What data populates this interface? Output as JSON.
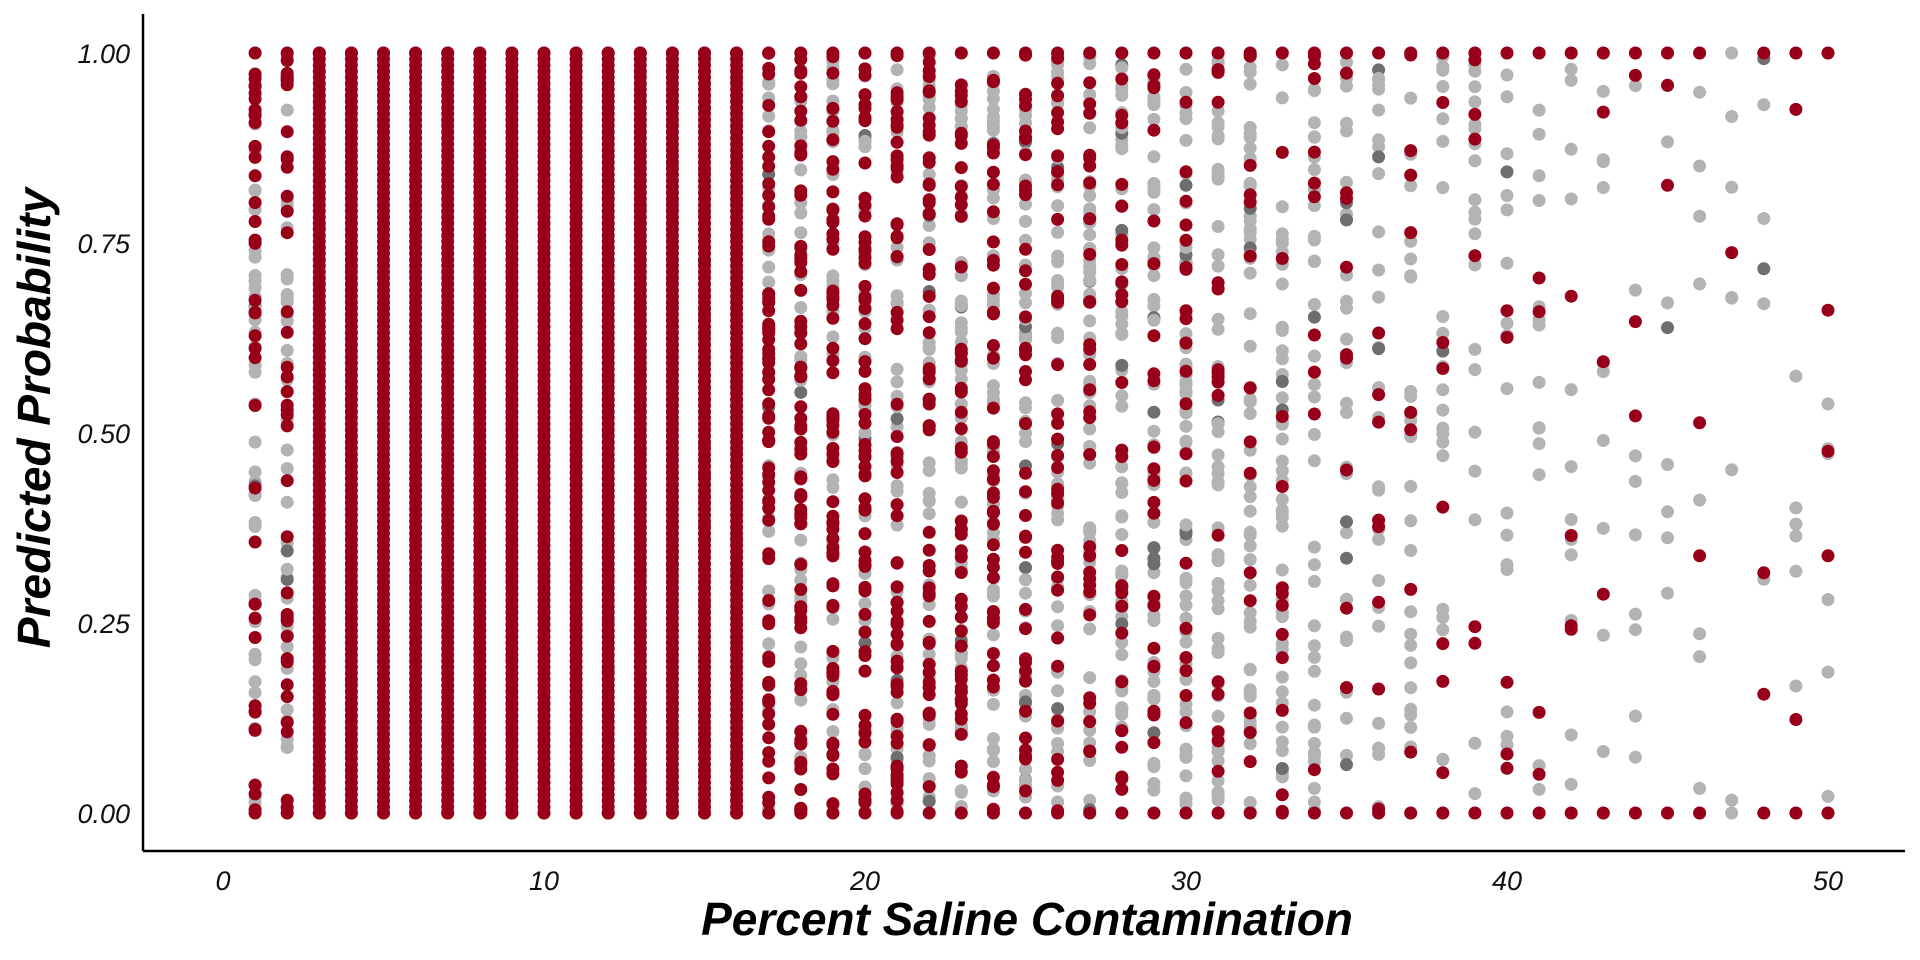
{
  "chart_data": {
    "type": "scatter",
    "title": "",
    "xlabel": "Percent Saline Contamination",
    "ylabel": "Predicted Probability",
    "xlim": [
      -2.5,
      52.5
    ],
    "ylim": [
      -0.05,
      1.05
    ],
    "x_ticks": [
      0,
      10,
      20,
      30,
      40,
      50
    ],
    "x_tick_labels": [
      "0",
      "10",
      "20",
      "30",
      "40",
      "50"
    ],
    "y_ticks": [
      0,
      0.25,
      0.5,
      0.75,
      1.0
    ],
    "y_tick_labels": [
      "0.00",
      "0.25",
      "0.50",
      "0.75",
      "1.00"
    ],
    "grid": false,
    "legend": "none",
    "colors": {
      "positive": "#98001a",
      "negative": "#b3b3b3",
      "overlap": "#6e6e6e"
    },
    "x_values": [
      1,
      2,
      3,
      4,
      5,
      6,
      7,
      8,
      9,
      10,
      11,
      12,
      13,
      14,
      15,
      16,
      17,
      18,
      19,
      20,
      21,
      22,
      23,
      24,
      25,
      26,
      27,
      28,
      29,
      30,
      31,
      32,
      33,
      34,
      35,
      36,
      37,
      38,
      39,
      40,
      41,
      42,
      43,
      44,
      45,
      46,
      47,
      48,
      49,
      50
    ],
    "series": [
      {
        "name": "",
        "color": "#98001a",
        "note_density_per_x": [
          0.55,
          0.5,
          0.95,
          1,
          1,
          1,
          1,
          1,
          1,
          1,
          1,
          1,
          1,
          1,
          0.97,
          0.95,
          0.92,
          0.88,
          0.85,
          0.8,
          0.78,
          0.72,
          0.66,
          0.6,
          0.52,
          0.46,
          0.4,
          0.34,
          0.3,
          0.26,
          0.22,
          0.19,
          0.16,
          0.13,
          0.12,
          0.11,
          0.1,
          0.09,
          0.08,
          0.06,
          0.05,
          0.05,
          0.04,
          0.04,
          0.02,
          0.02,
          0.01,
          0.02,
          0.03,
          0.04
        ]
      },
      {
        "name": "",
        "color": "#b3b3b3",
        "note_density_per_x": [
          0.6,
          0.55,
          0.3,
          0.05,
          0.03,
          0.03,
          0.03,
          0.03,
          0.04,
          0.05,
          0.08,
          0.1,
          0.15,
          0.2,
          0.3,
          0.35,
          0.45,
          0.5,
          0.55,
          0.6,
          0.62,
          0.65,
          0.68,
          0.7,
          0.72,
          0.74,
          0.76,
          0.78,
          0.78,
          0.78,
          0.75,
          0.7,
          0.6,
          0.5,
          0.42,
          0.38,
          0.33,
          0.3,
          0.26,
          0.22,
          0.18,
          0.16,
          0.15,
          0.12,
          0.1,
          0.1,
          0.08,
          0.08,
          0.08,
          0.08
        ]
      }
    ]
  }
}
